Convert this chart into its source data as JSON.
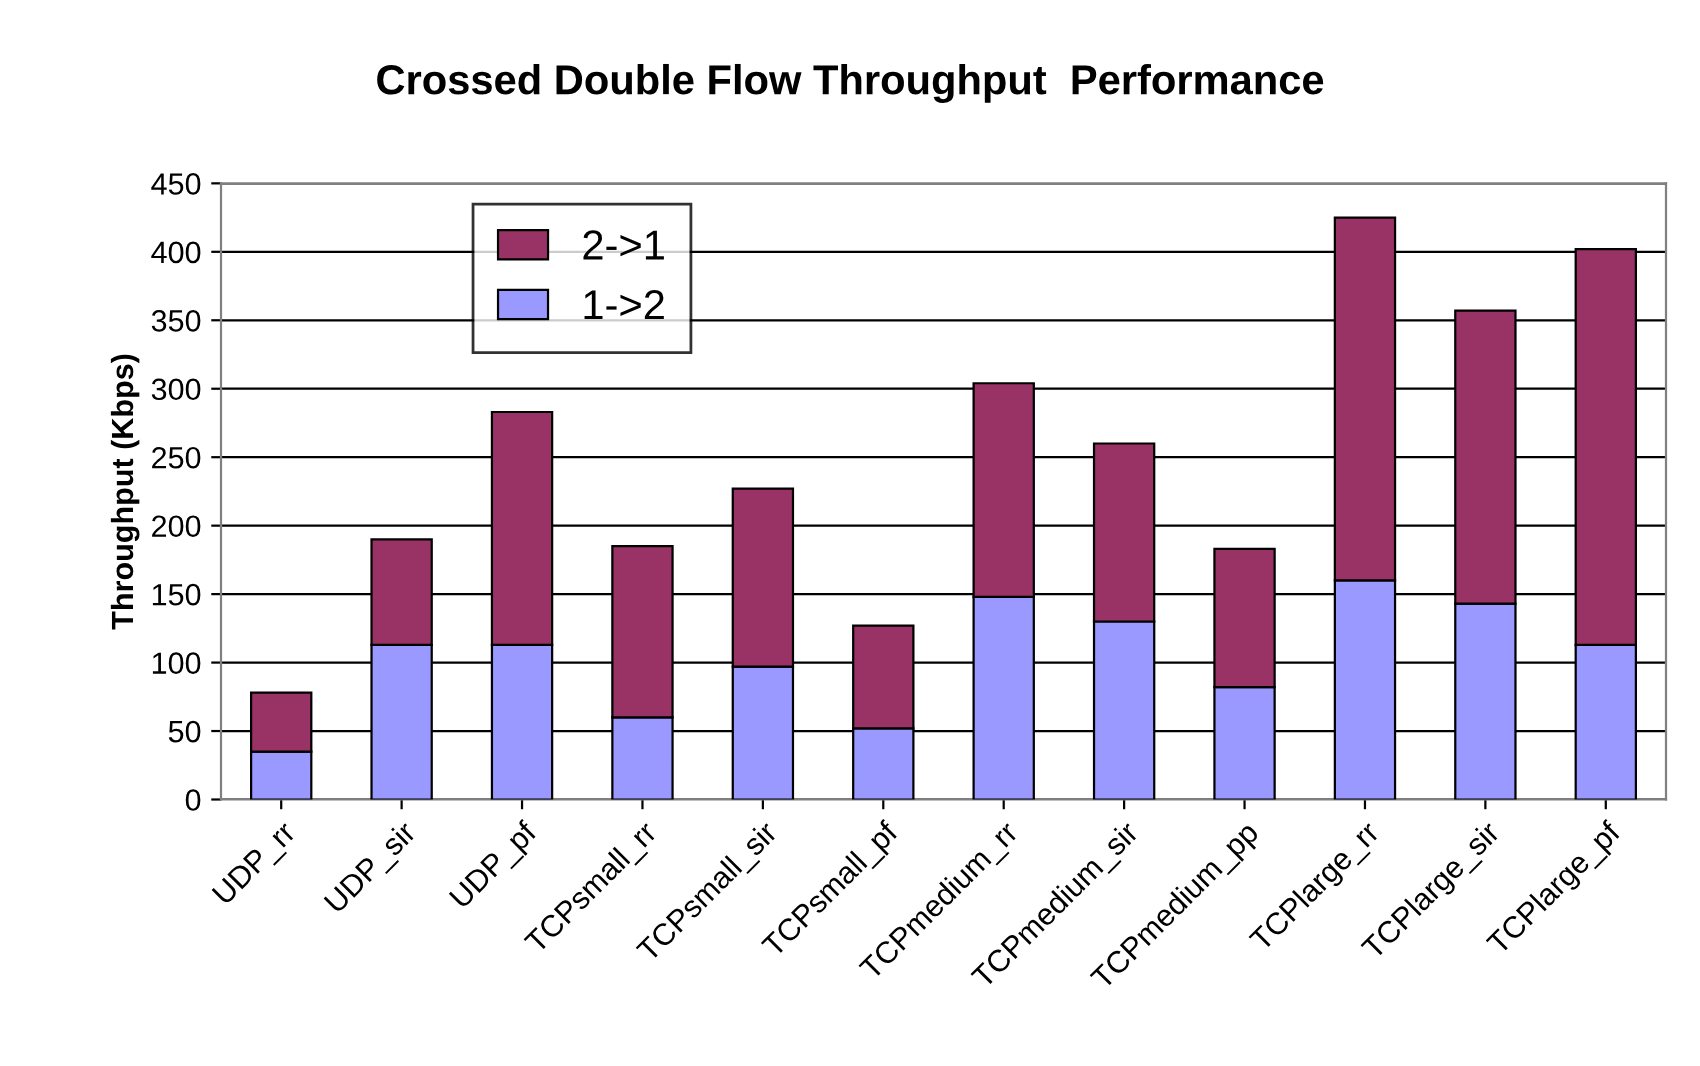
{
  "chart_data": {
    "type": "bar",
    "title": "Crossed Double Flow Throughput  Performance",
    "ylabel": "Throughput (Kbps)",
    "categories": [
      "UDP_rr",
      "UDP_sir",
      "UDP_pf",
      "TCPsmall_rr",
      "TCPsmall_sir",
      "TCPsmall_pf",
      "TCPmedium_rr",
      "TCPmedium_sir",
      "TCPmedium_pp",
      "TCPlarge_rr",
      "TCPlarge_sir",
      "TCPlarge_pf"
    ],
    "stacked": true,
    "series": [
      {
        "name": "1->2",
        "color": "#9999ff",
        "values": [
          35,
          113,
          113,
          60,
          97,
          52,
          148,
          130,
          82,
          160,
          143,
          113
        ]
      },
      {
        "name": "2->1",
        "color": "#993366",
        "values": [
          43,
          77,
          170,
          125,
          130,
          75,
          156,
          130,
          101,
          265,
          214,
          289
        ]
      }
    ],
    "ylim": [
      0,
      450
    ],
    "yticks": [
      0,
      50,
      100,
      150,
      200,
      250,
      300,
      350,
      400,
      450
    ],
    "grid": "y",
    "legend": "top left"
  }
}
